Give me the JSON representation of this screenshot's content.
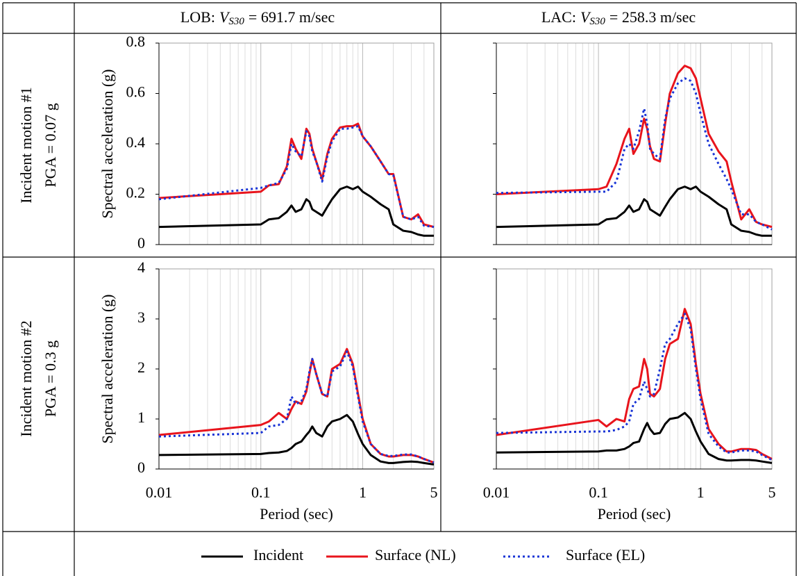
{
  "table": {
    "columns": [
      {
        "site": "LOB:",
        "symbol": "V",
        "subscript": "S30",
        "value": "= 691.7 m/sec"
      },
      {
        "site": "LAC:",
        "symbol": "V",
        "subscript": "S30",
        "value": "= 258.3 m/sec"
      }
    ],
    "rows": [
      [
        "Incident motion #1",
        "PGA = 0.07 g"
      ],
      [
        "Incident motion #2",
        "PGA = 0.3 g"
      ]
    ]
  },
  "chart_data": [
    {
      "type": "line",
      "log_x": true,
      "ylabel": "Spectral acceleration (g)",
      "show_ytick_labels": true,
      "show_xtick_labels": false,
      "xlim": [
        0.01,
        5
      ],
      "xticks": [
        0.01,
        0.1,
        1,
        5
      ],
      "xgrid": [
        0.02,
        0.03,
        0.04,
        0.05,
        0.06,
        0.07,
        0.08,
        0.09,
        0.2,
        0.3,
        0.4,
        0.5,
        0.6,
        0.7,
        0.8,
        0.9,
        2,
        3,
        4
      ],
      "ylim": [
        0,
        0.8
      ],
      "yticks": [
        0,
        0.2,
        0.4,
        0.6,
        0.8
      ],
      "x": [
        0.01,
        0.1,
        0.12,
        0.15,
        0.18,
        0.2,
        0.22,
        0.25,
        0.28,
        0.3,
        0.32,
        0.35,
        0.4,
        0.45,
        0.5,
        0.6,
        0.7,
        0.8,
        0.9,
        1,
        1.2,
        1.5,
        1.8,
        2,
        2.5,
        3,
        3.5,
        4,
        5
      ],
      "series": [
        {
          "name": "Incident",
          "color": "#000000",
          "style": "solid",
          "values": [
            0.07,
            0.08,
            0.1,
            0.105,
            0.13,
            0.155,
            0.13,
            0.14,
            0.18,
            0.17,
            0.14,
            0.13,
            0.115,
            0.15,
            0.18,
            0.22,
            0.23,
            0.22,
            0.23,
            0.21,
            0.19,
            0.16,
            0.14,
            0.08,
            0.055,
            0.05,
            0.04,
            0.035,
            0.035
          ]
        },
        {
          "name": "Surface (NL)",
          "color": "#e8141c",
          "style": "solid",
          "values": [
            0.185,
            0.21,
            0.235,
            0.24,
            0.31,
            0.42,
            0.38,
            0.34,
            0.46,
            0.44,
            0.38,
            0.33,
            0.26,
            0.36,
            0.42,
            0.465,
            0.47,
            0.47,
            0.48,
            0.43,
            0.39,
            0.33,
            0.28,
            0.28,
            0.11,
            0.1,
            0.12,
            0.08,
            0.07
          ]
        },
        {
          "name": "Surface (EL)",
          "color": "#1a35d6",
          "style": "dotted",
          "values": [
            0.18,
            0.225,
            0.235,
            0.245,
            0.3,
            0.4,
            0.37,
            0.35,
            0.45,
            0.43,
            0.37,
            0.33,
            0.25,
            0.35,
            0.41,
            0.46,
            0.46,
            0.465,
            0.47,
            0.43,
            0.39,
            0.33,
            0.28,
            0.275,
            0.11,
            0.1,
            0.11,
            0.075,
            0.07
          ]
        }
      ]
    },
    {
      "type": "line",
      "log_x": true,
      "show_ytick_labels": false,
      "show_xtick_labels": false,
      "xlim": [
        0.01,
        5
      ],
      "xticks": [
        0.01,
        0.1,
        1,
        5
      ],
      "xgrid": [
        0.02,
        0.03,
        0.04,
        0.05,
        0.06,
        0.07,
        0.08,
        0.09,
        0.2,
        0.3,
        0.4,
        0.5,
        0.6,
        0.7,
        0.8,
        0.9,
        2,
        3,
        4
      ],
      "ylim": [
        0,
        0.8
      ],
      "yticks": [
        0,
        0.2,
        0.4,
        0.6,
        0.8
      ],
      "x": [
        0.01,
        0.1,
        0.12,
        0.15,
        0.18,
        0.2,
        0.22,
        0.25,
        0.28,
        0.3,
        0.32,
        0.35,
        0.4,
        0.45,
        0.5,
        0.6,
        0.7,
        0.8,
        0.9,
        1,
        1.2,
        1.5,
        1.8,
        2,
        2.5,
        3,
        3.5,
        4,
        5
      ],
      "series": [
        {
          "name": "Incident",
          "color": "#000000",
          "style": "solid",
          "values": [
            0.07,
            0.08,
            0.1,
            0.105,
            0.13,
            0.155,
            0.13,
            0.14,
            0.18,
            0.17,
            0.14,
            0.13,
            0.115,
            0.15,
            0.18,
            0.22,
            0.23,
            0.22,
            0.23,
            0.21,
            0.19,
            0.16,
            0.14,
            0.08,
            0.055,
            0.05,
            0.04,
            0.035,
            0.035
          ]
        },
        {
          "name": "Surface (NL)",
          "color": "#e8141c",
          "style": "solid",
          "values": [
            0.2,
            0.22,
            0.23,
            0.32,
            0.42,
            0.46,
            0.36,
            0.4,
            0.5,
            0.46,
            0.39,
            0.34,
            0.33,
            0.48,
            0.6,
            0.68,
            0.71,
            0.7,
            0.66,
            0.58,
            0.44,
            0.37,
            0.33,
            0.25,
            0.1,
            0.14,
            0.09,
            0.08,
            0.07
          ]
        },
        {
          "name": "Surface (EL)",
          "color": "#1a35d6",
          "style": "dotted",
          "values": [
            0.205,
            0.21,
            0.21,
            0.25,
            0.38,
            0.4,
            0.38,
            0.45,
            0.54,
            0.48,
            0.38,
            0.36,
            0.34,
            0.5,
            0.58,
            0.64,
            0.66,
            0.65,
            0.6,
            0.52,
            0.4,
            0.32,
            0.26,
            0.22,
            0.12,
            0.12,
            0.09,
            0.08,
            0.06
          ]
        }
      ]
    },
    {
      "type": "line",
      "log_x": true,
      "ylabel": "Spectral acceleration (g)",
      "xlabel": "Period (sec)",
      "show_ytick_labels": true,
      "show_xtick_labels": true,
      "xlim": [
        0.01,
        5
      ],
      "xticks": [
        0.01,
        0.1,
        1,
        5
      ],
      "xgrid": [
        0.02,
        0.03,
        0.04,
        0.05,
        0.06,
        0.07,
        0.08,
        0.09,
        0.2,
        0.3,
        0.4,
        0.5,
        0.6,
        0.7,
        0.8,
        0.9,
        2,
        3,
        4
      ],
      "ylim": [
        0,
        4
      ],
      "yticks": [
        0,
        1,
        2,
        3,
        4
      ],
      "x": [
        0.01,
        0.1,
        0.12,
        0.15,
        0.18,
        0.2,
        0.22,
        0.25,
        0.28,
        0.3,
        0.32,
        0.35,
        0.4,
        0.45,
        0.5,
        0.6,
        0.7,
        0.8,
        0.9,
        1,
        1.2,
        1.5,
        1.8,
        2,
        2.5,
        3,
        3.5,
        4,
        5
      ],
      "series": [
        {
          "name": "Incident",
          "color": "#000000",
          "style": "solid",
          "values": [
            0.28,
            0.3,
            0.32,
            0.33,
            0.36,
            0.42,
            0.5,
            0.55,
            0.68,
            0.75,
            0.85,
            0.72,
            0.65,
            0.85,
            0.95,
            1.0,
            1.08,
            0.95,
            0.7,
            0.5,
            0.28,
            0.15,
            0.12,
            0.12,
            0.14,
            0.15,
            0.14,
            0.12,
            0.09
          ]
        },
        {
          "name": "Surface (NL)",
          "color": "#e8141c",
          "style": "solid",
          "values": [
            0.68,
            0.88,
            0.95,
            1.12,
            1.0,
            1.2,
            1.35,
            1.3,
            1.55,
            1.9,
            2.2,
            1.9,
            1.5,
            1.45,
            2.0,
            2.1,
            2.4,
            2.1,
            1.5,
            1.0,
            0.5,
            0.3,
            0.25,
            0.25,
            0.28,
            0.28,
            0.25,
            0.2,
            0.13
          ]
        },
        {
          "name": "Surface (EL)",
          "color": "#1a35d6",
          "style": "dotted",
          "values": [
            0.65,
            0.72,
            0.85,
            0.88,
            1.0,
            1.45,
            1.3,
            1.35,
            1.6,
            1.95,
            2.2,
            1.9,
            1.5,
            1.45,
            1.95,
            2.05,
            2.35,
            2.05,
            1.45,
            0.95,
            0.5,
            0.3,
            0.26,
            0.26,
            0.29,
            0.29,
            0.25,
            0.2,
            0.13
          ]
        }
      ]
    },
    {
      "type": "line",
      "log_x": true,
      "xlabel": "Period (sec)",
      "show_ytick_labels": false,
      "show_xtick_labels": true,
      "xlim": [
        0.01,
        5
      ],
      "xticks": [
        0.01,
        0.1,
        1,
        5
      ],
      "xgrid": [
        0.02,
        0.03,
        0.04,
        0.05,
        0.06,
        0.07,
        0.08,
        0.09,
        0.2,
        0.3,
        0.4,
        0.5,
        0.6,
        0.7,
        0.8,
        0.9,
        2,
        3,
        4
      ],
      "ylim": [
        0,
        4
      ],
      "yticks": [
        0,
        1,
        2,
        3,
        4
      ],
      "x": [
        0.01,
        0.1,
        0.12,
        0.15,
        0.18,
        0.2,
        0.22,
        0.25,
        0.28,
        0.3,
        0.32,
        0.35,
        0.4,
        0.45,
        0.5,
        0.6,
        0.7,
        0.8,
        0.9,
        1,
        1.2,
        1.5,
        1.8,
        2,
        2.5,
        3,
        3.5,
        4,
        5
      ],
      "series": [
        {
          "name": "Incident",
          "color": "#000000",
          "style": "solid",
          "values": [
            0.33,
            0.35,
            0.37,
            0.37,
            0.4,
            0.45,
            0.52,
            0.55,
            0.8,
            0.92,
            0.8,
            0.7,
            0.72,
            0.9,
            1.0,
            1.03,
            1.12,
            1.0,
            0.75,
            0.55,
            0.3,
            0.2,
            0.17,
            0.17,
            0.18,
            0.18,
            0.17,
            0.15,
            0.12
          ]
        },
        {
          "name": "Surface (NL)",
          "color": "#e8141c",
          "style": "solid",
          "values": [
            0.68,
            0.98,
            0.85,
            1.0,
            0.95,
            1.4,
            1.6,
            1.65,
            2.2,
            2.0,
            1.5,
            1.45,
            1.6,
            2.2,
            2.5,
            2.6,
            3.2,
            2.9,
            2.1,
            1.5,
            0.8,
            0.5,
            0.35,
            0.35,
            0.4,
            0.4,
            0.38,
            0.3,
            0.2
          ]
        },
        {
          "name": "Surface (EL)",
          "color": "#1a35d6",
          "style": "dotted",
          "values": [
            0.72,
            0.75,
            0.75,
            0.78,
            0.85,
            0.95,
            1.3,
            1.4,
            1.75,
            1.6,
            1.45,
            1.5,
            2.0,
            2.5,
            2.6,
            2.9,
            3.1,
            2.8,
            2.0,
            1.4,
            0.7,
            0.45,
            0.33,
            0.33,
            0.37,
            0.37,
            0.35,
            0.28,
            0.18
          ]
        }
      ]
    }
  ]
}
